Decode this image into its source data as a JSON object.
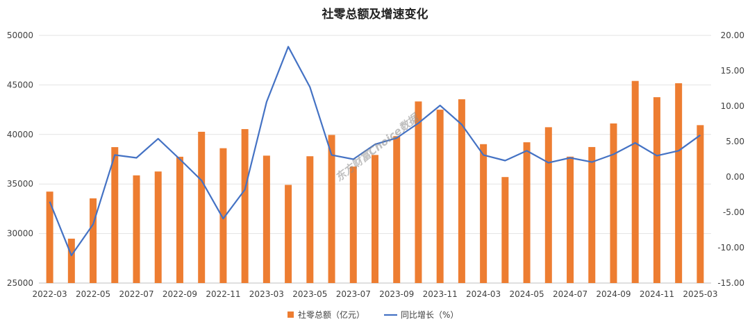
{
  "chart_data": {
    "type": "bar+line",
    "title": "社零总额及增速变化",
    "categories": [
      "2022-03",
      "2022-04",
      "2022-05",
      "2022-06",
      "2022-07",
      "2022-08",
      "2022-09",
      "2022-10",
      "2022-11",
      "2022-12",
      "2023-03",
      "2023-04",
      "2023-05",
      "2023-06",
      "2023-07",
      "2023-08",
      "2023-09",
      "2023-10",
      "2023-11",
      "2023-12",
      "2024-03",
      "2024-04",
      "2024-05",
      "2024-06",
      "2024-07",
      "2024-08",
      "2024-09",
      "2024-10",
      "2024-11",
      "2024-12",
      "2025-03"
    ],
    "x_tick_labels": [
      "2022-03",
      "2022-05",
      "2022-07",
      "2022-09",
      "2022-11",
      "2023-03",
      "2023-05",
      "2023-07",
      "2023-09",
      "2023-11",
      "2024-03",
      "2024-05",
      "2024-07",
      "2024-09",
      "2024-11",
      "2025-03"
    ],
    "x_tick_indices": [
      0,
      2,
      4,
      6,
      8,
      10,
      12,
      14,
      16,
      18,
      20,
      22,
      24,
      26,
      28,
      30
    ],
    "series": [
      {
        "name": "社零总额（亿元）",
        "type": "bar",
        "axis": "left",
        "color": "#ED7D31",
        "values": [
          34230,
          29480,
          33550,
          38720,
          35870,
          36260,
          37750,
          40270,
          38610,
          40540,
          37860,
          34910,
          37800,
          39950,
          36760,
          37930,
          39830,
          43330,
          42500,
          43550,
          39020,
          35700,
          39210,
          40730,
          37760,
          38730,
          41110,
          45400,
          43760,
          45170,
          40940
        ]
      },
      {
        "name": "同比增长（%）",
        "type": "line",
        "axis": "right",
        "color": "#4472C4",
        "values": [
          -3.5,
          -11.1,
          -6.7,
          3.1,
          2.7,
          5.4,
          2.5,
          -0.5,
          -5.9,
          -1.8,
          10.6,
          18.4,
          12.7,
          3.1,
          2.5,
          4.6,
          5.5,
          7.6,
          10.1,
          7.4,
          3.1,
          2.3,
          3.7,
          2.0,
          2.7,
          2.1,
          3.2,
          4.8,
          3.0,
          3.7,
          5.9
        ]
      }
    ],
    "y_left": {
      "min": 25000,
      "max": 50000,
      "ticks": [
        "25000",
        "30000",
        "35000",
        "40000",
        "45000",
        "50000"
      ]
    },
    "y_right": {
      "min": -15,
      "max": 20,
      "ticks": [
        "-15.00",
        "-10.00",
        "-5.00",
        "0.00",
        "5.00",
        "10.00",
        "15.00",
        "20.00"
      ]
    },
    "grid": true,
    "legend": "bottom",
    "watermark": "东方财富Choice数据"
  }
}
